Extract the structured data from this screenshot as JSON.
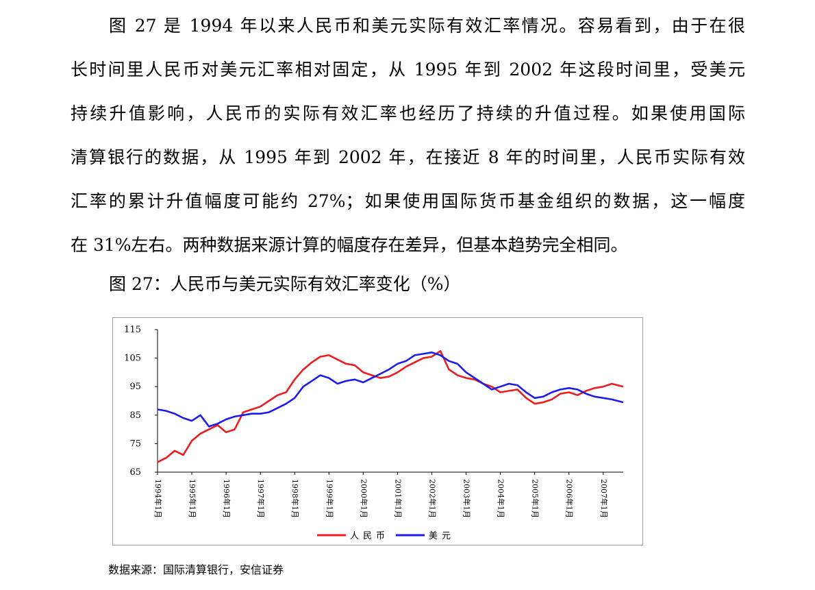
{
  "paragraph": {
    "lines": [
      "图 27 是 1994 年以来人民币和美元实际有效汇率情况。容易看到，由于在很",
      "长时间里人民币对美元汇率相对固定，从 1995 年到 2002 年这段时间里，受美元",
      "持续升值影响，人民币的实际有效汇率也经历了持续的升值过程。如果使用国际",
      "清算银行的数据，从 1995 年到 2002 年，在接近 8 年的时间里，人民币实际有效",
      "汇率的累计升值幅度可能约 27%；如果使用国际货币基金组织的数据，这一幅度",
      "在 31%左右。两种数据来源计算的幅度存在差异，但基本趋势完全相同。"
    ]
  },
  "figure_title": "图 27：人民币与美元实际有效汇率变化（%）",
  "source_note": "数据来源：国际清算银行，安信证券",
  "chart_data": {
    "type": "line",
    "x_ticks": [
      "1994年1月",
      "1995年1月",
      "1996年1月",
      "1997年1月",
      "1998年1月",
      "1999年1月",
      "2000年1月",
      "2001年1月",
      "2002年1月",
      "2003年1月",
      "2004年1月",
      "2005年1月",
      "2006年1月",
      "2007年1月"
    ],
    "y_ticks": [
      "115",
      "105",
      "95",
      "85",
      "75",
      "65"
    ],
    "ylim": [
      65,
      115
    ],
    "x_start": "1994-01",
    "x_end": "2007-08",
    "grid": false,
    "legend_position": "bottom",
    "series": [
      {
        "name": "人民币",
        "color": "#ee1c1c",
        "points": [
          [
            "1994-01",
            68.5
          ],
          [
            "1994-04",
            70
          ],
          [
            "1994-07",
            72.5
          ],
          [
            "1994-10",
            71
          ],
          [
            "1995-01",
            76
          ],
          [
            "1995-04",
            78.5
          ],
          [
            "1995-07",
            80
          ],
          [
            "1995-10",
            81.5
          ],
          [
            "1996-01",
            79
          ],
          [
            "1996-04",
            80
          ],
          [
            "1996-07",
            86
          ],
          [
            "1996-10",
            87
          ],
          [
            "1997-01",
            88
          ],
          [
            "1997-04",
            90
          ],
          [
            "1997-07",
            92
          ],
          [
            "1997-10",
            93
          ],
          [
            "1998-01",
            97.5
          ],
          [
            "1998-04",
            101
          ],
          [
            "1998-07",
            103.5
          ],
          [
            "1998-10",
            105.5
          ],
          [
            "1999-01",
            106
          ],
          [
            "1999-04",
            104.5
          ],
          [
            "1999-07",
            103
          ],
          [
            "1999-10",
            102.5
          ],
          [
            "2000-01",
            100
          ],
          [
            "2000-04",
            99
          ],
          [
            "2000-07",
            98
          ],
          [
            "2000-10",
            98.5
          ],
          [
            "2001-01",
            100
          ],
          [
            "2001-04",
            102
          ],
          [
            "2001-07",
            103.5
          ],
          [
            "2001-10",
            105
          ],
          [
            "2002-01",
            105.5
          ],
          [
            "2002-04",
            107.5
          ],
          [
            "2002-07",
            101
          ],
          [
            "2002-10",
            99
          ],
          [
            "2003-01",
            98
          ],
          [
            "2003-04",
            97.5
          ],
          [
            "2003-07",
            96
          ],
          [
            "2003-10",
            95
          ],
          [
            "2004-01",
            93
          ],
          [
            "2004-04",
            93.5
          ],
          [
            "2004-07",
            94
          ],
          [
            "2004-10",
            91
          ],
          [
            "2005-01",
            89
          ],
          [
            "2005-04",
            89.5
          ],
          [
            "2005-07",
            90.5
          ],
          [
            "2005-10",
            92.5
          ],
          [
            "2006-01",
            93
          ],
          [
            "2006-04",
            92
          ],
          [
            "2006-07",
            93.5
          ],
          [
            "2006-10",
            94.5
          ],
          [
            "2007-01",
            95
          ],
          [
            "2007-04",
            96
          ],
          [
            "2007-08",
            95
          ]
        ]
      },
      {
        "name": "美元",
        "color": "#1c1cee",
        "points": [
          [
            "1994-01",
            87
          ],
          [
            "1994-04",
            86.5
          ],
          [
            "1994-07",
            85.5
          ],
          [
            "1994-10",
            84
          ],
          [
            "1995-01",
            83
          ],
          [
            "1995-04",
            85
          ],
          [
            "1995-07",
            81
          ],
          [
            "1995-10",
            82
          ],
          [
            "1996-01",
            83.5
          ],
          [
            "1996-04",
            84.5
          ],
          [
            "1996-07",
            85
          ],
          [
            "1996-10",
            85.5
          ],
          [
            "1997-01",
            85.5
          ],
          [
            "1997-04",
            86
          ],
          [
            "1997-07",
            87.5
          ],
          [
            "1997-10",
            89
          ],
          [
            "1998-01",
            91
          ],
          [
            "1998-04",
            95
          ],
          [
            "1998-07",
            97
          ],
          [
            "1998-10",
            99
          ],
          [
            "1999-01",
            98
          ],
          [
            "1999-04",
            96
          ],
          [
            "1999-07",
            97
          ],
          [
            "1999-10",
            97.5
          ],
          [
            "2000-01",
            96.5
          ],
          [
            "2000-04",
            98
          ],
          [
            "2000-07",
            99.5
          ],
          [
            "2000-10",
            101
          ],
          [
            "2001-01",
            103
          ],
          [
            "2001-04",
            104
          ],
          [
            "2001-07",
            106
          ],
          [
            "2001-10",
            106.5
          ],
          [
            "2002-01",
            107
          ],
          [
            "2002-04",
            106
          ],
          [
            "2002-07",
            104
          ],
          [
            "2002-10",
            103
          ],
          [
            "2003-01",
            100
          ],
          [
            "2003-04",
            98
          ],
          [
            "2003-07",
            96
          ],
          [
            "2003-10",
            94
          ],
          [
            "2004-01",
            95
          ],
          [
            "2004-04",
            96
          ],
          [
            "2004-07",
            95.5
          ],
          [
            "2004-10",
            93
          ],
          [
            "2005-01",
            91
          ],
          [
            "2005-04",
            91.5
          ],
          [
            "2005-07",
            93
          ],
          [
            "2005-10",
            94
          ],
          [
            "2006-01",
            94.5
          ],
          [
            "2006-04",
            94
          ],
          [
            "2006-07",
            92.5
          ],
          [
            "2006-10",
            91.5
          ],
          [
            "2007-01",
            91
          ],
          [
            "2007-04",
            90.5
          ],
          [
            "2007-08",
            89.5
          ]
        ]
      }
    ]
  }
}
